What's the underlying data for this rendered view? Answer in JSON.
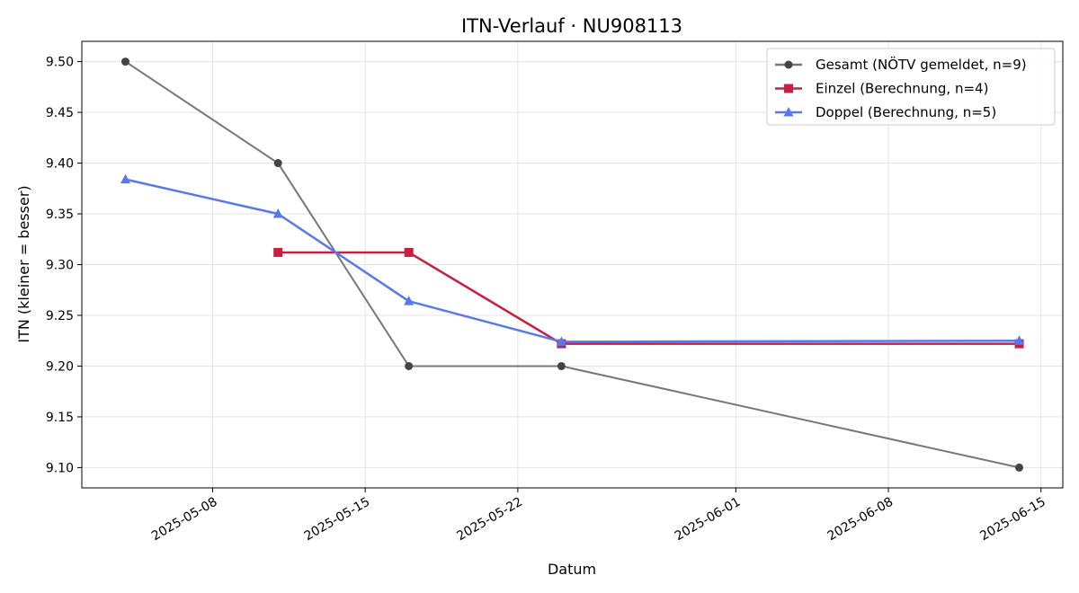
{
  "chart_data": {
    "type": "line",
    "title": "ITN-Verlauf · NU908113",
    "xlabel": "Datum",
    "ylabel": "ITN  (kleiner = besser)",
    "xlim": [
      "2025-05-02",
      "2025-06-16"
    ],
    "ylim": [
      9.08,
      9.52
    ],
    "x_ticks": [
      "2025-05-08",
      "2025-05-15",
      "2025-05-22",
      "2025-06-01",
      "2025-06-08",
      "2025-06-15"
    ],
    "y_ticks": [
      9.1,
      9.15,
      9.2,
      9.25,
      9.3,
      9.35,
      9.4,
      9.45,
      9.5
    ],
    "grid": true,
    "legend_position": "top-right",
    "series": [
      {
        "name": "Gesamt (NÖTV gemeldet, n=9)",
        "color": "#777777",
        "marker_color": "#444444",
        "marker": "circle",
        "x": [
          "2025-05-04",
          "2025-05-11",
          "2025-05-17",
          "2025-05-24",
          "2025-06-14"
        ],
        "values": [
          9.5,
          9.4,
          9.2,
          9.2,
          9.1
        ]
      },
      {
        "name": "Einzel (Berechnung, n=4)",
        "color": "#c8203e",
        "marker_color": "#c8203e",
        "marker": "square",
        "x": [
          "2025-05-11",
          "2025-05-17",
          "2025-05-24",
          "2025-06-14"
        ],
        "values": [
          9.312,
          9.312,
          9.222,
          9.222
        ]
      },
      {
        "name": "Doppel (Berechnung, n=5)",
        "color": "#5a78ee",
        "marker_color": "#5a78ee",
        "marker": "triangle",
        "x": [
          "2025-05-04",
          "2025-05-11",
          "2025-05-17",
          "2025-05-24",
          "2025-06-14"
        ],
        "values": [
          9.384,
          9.35,
          9.264,
          9.224,
          9.225
        ]
      }
    ]
  }
}
